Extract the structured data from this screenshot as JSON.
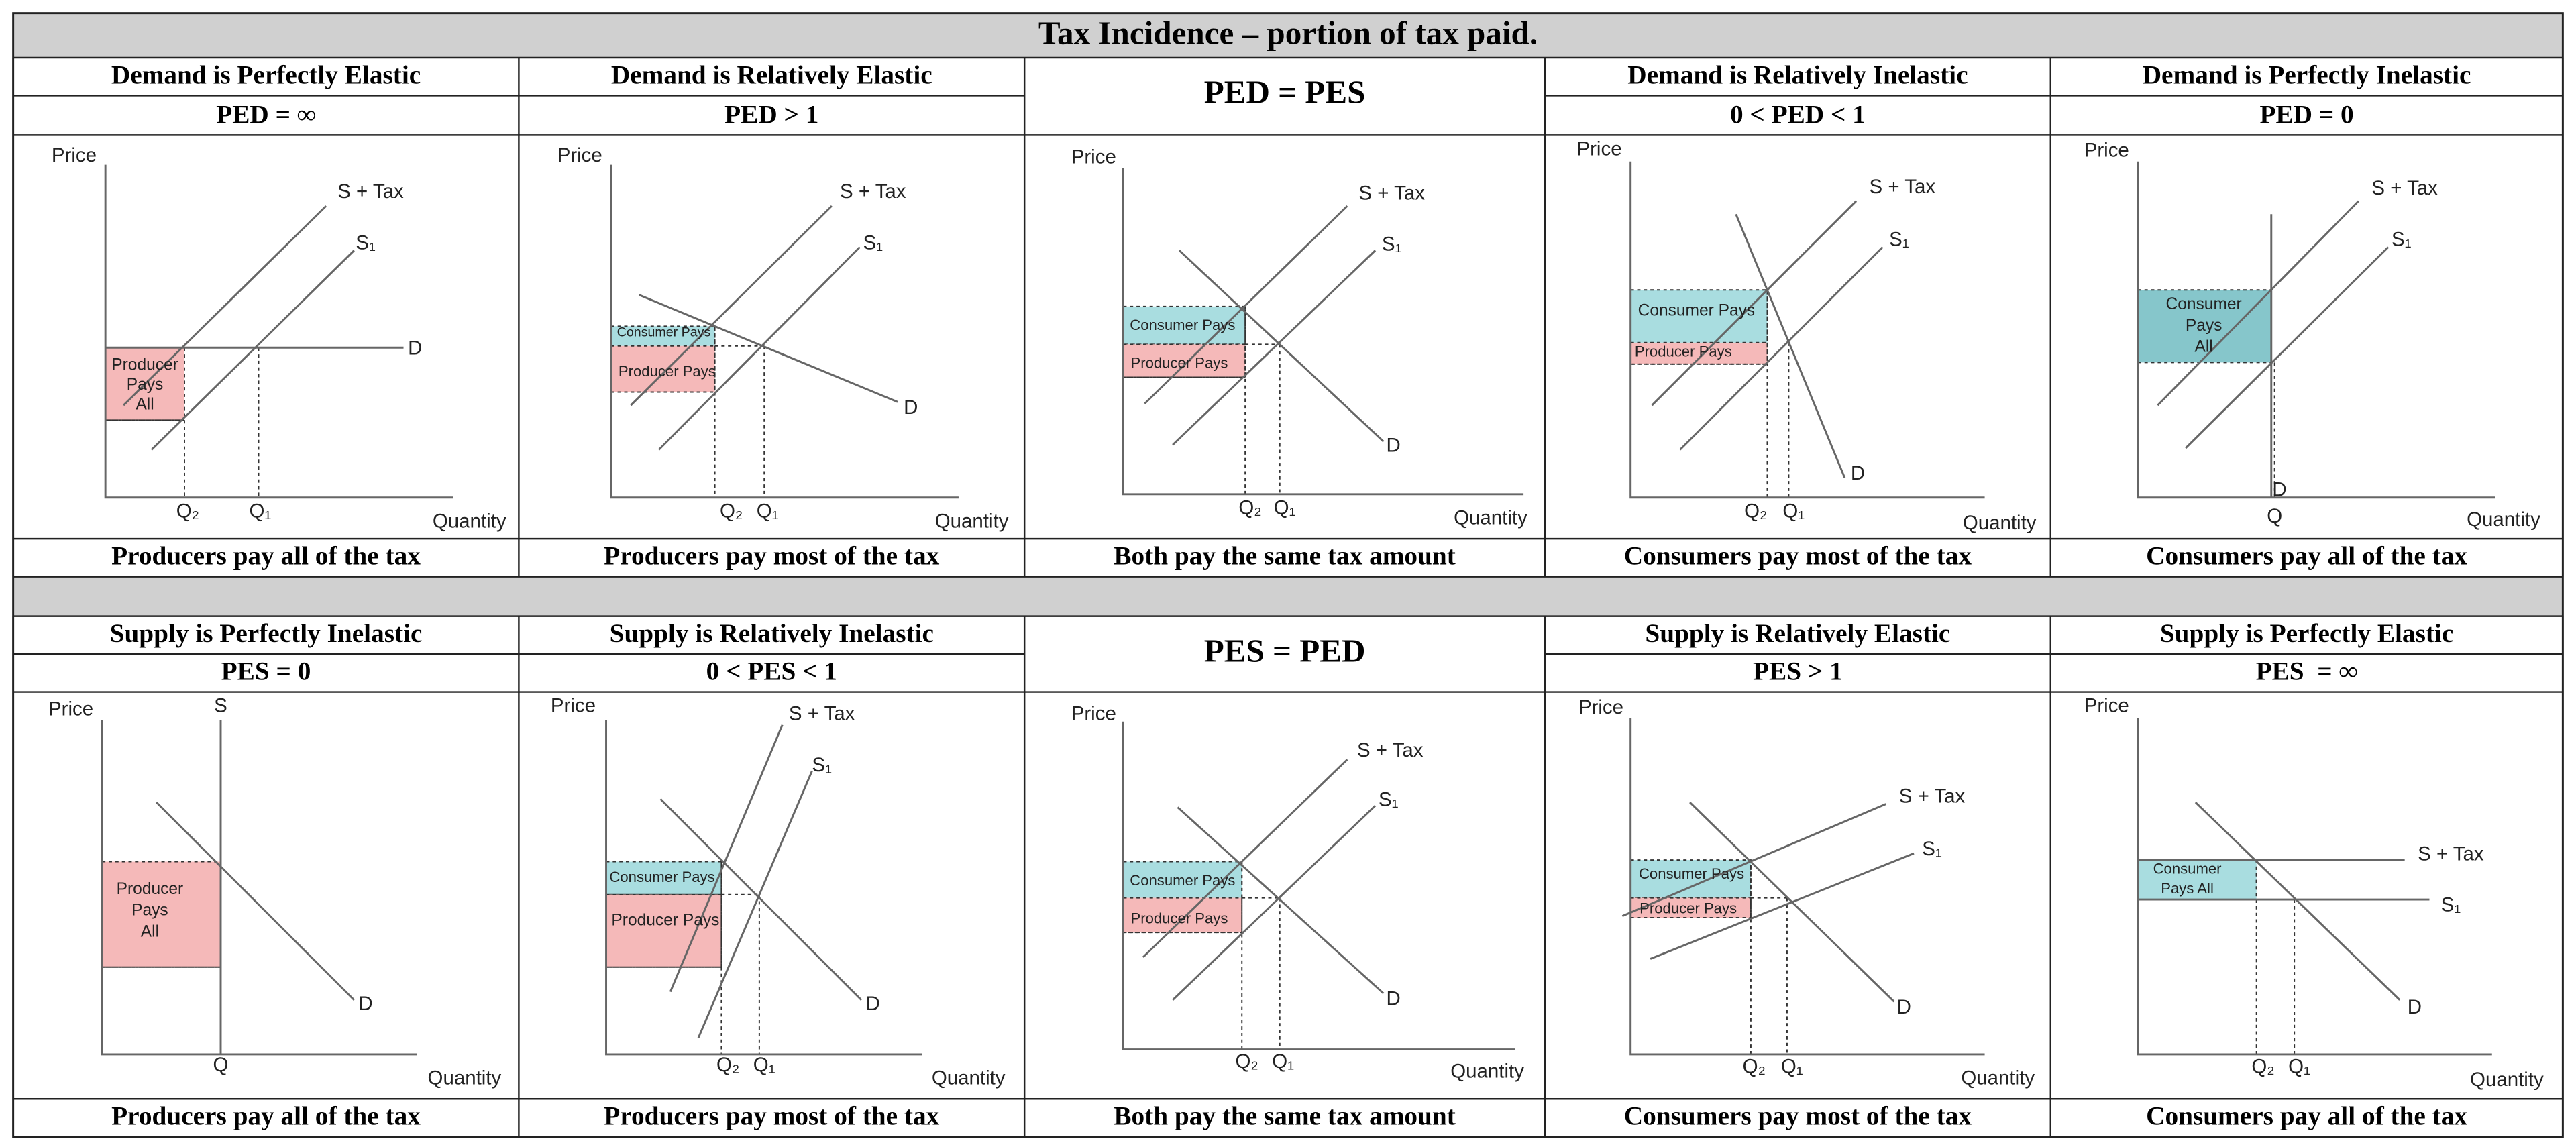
{
  "title": "Tax Incidence – portion of tax paid.",
  "panels": [
    {
      "heading": "Demand is Perfectly Elastic",
      "subheading": "PED = ∞",
      "caption": "Producers pay all of the tax",
      "labels": [
        "Price",
        "Quantity",
        "S + Tax",
        "S₁",
        "D",
        "Producer",
        "Pays",
        "All",
        "Q₂",
        "Q₁"
      ]
    },
    {
      "heading": "Demand is Relatively Elastic",
      "subheading": "PED > 1",
      "caption": "Producers pay most of the tax",
      "labels": [
        "Price",
        "Quantity",
        "S + Tax",
        "S₁",
        "D",
        "Consumer Pays",
        "Producer Pays",
        "Q₂",
        "Q₁"
      ]
    },
    {
      "heading": "PED = PES",
      "caption": "Both pay the same tax amount",
      "labels": [
        "Price",
        "Quantity",
        "S + Tax",
        "S₁",
        "D",
        "Consumer Pays",
        "Producer Pays",
        "Q₂",
        "Q₁"
      ]
    },
    {
      "heading": "Demand is Relatively Inelastic",
      "subheading": "0 < PED < 1",
      "caption": "Consumers pay most of the tax",
      "labels": [
        "Price",
        "Quantity",
        "S + Tax",
        "S₁",
        "D",
        "Consumer Pays",
        "Producer Pays",
        "Q₂",
        "Q₁"
      ]
    },
    {
      "heading": "Demand is Perfectly Inelastic",
      "subheading": "PED = 0",
      "caption": "Consumers pay all of the tax",
      "labels": [
        "Price",
        "Quantity",
        "S + Tax",
        "S₁",
        "D",
        "Consumer",
        "Pays",
        "All",
        "Q"
      ]
    },
    {
      "heading": "Supply is Perfectly Inelastic",
      "subheading": "PES = 0",
      "caption": "Producers pay all of the tax",
      "labels": [
        "Price",
        "Quantity",
        "S",
        "D",
        "Producer",
        "Pays",
        "All",
        "Q"
      ]
    },
    {
      "heading": "Supply is Relatively Inelastic",
      "subheading": "0 < PES < 1",
      "caption": "Producers pay most of the tax",
      "labels": [
        "Price",
        "Quantity",
        "S + Tax",
        "S₁",
        "D",
        "Consumer Pays",
        "Producer Pays",
        "Q₂",
        "Q₁"
      ]
    },
    {
      "heading": "PES = PED",
      "caption": "Both pay the same tax amount",
      "labels": [
        "Price",
        "Quantity",
        "S + Tax",
        "S₁",
        "D",
        "Consumer Pays",
        "Producer Pays",
        "Q₂",
        "Q₁"
      ]
    },
    {
      "heading": "Supply is Relatively Elastic",
      "subheading": "PES > 1",
      "caption": "Consumers pay most of the tax",
      "labels": [
        "Price",
        "Quantity",
        "S + Tax",
        "S₁",
        "D",
        "Consumer Pays",
        "Producer Pays",
        "Q₂",
        "Q₁"
      ]
    },
    {
      "heading": "Supply is Perfectly Elastic",
      "subheading": "PES  = ∞",
      "caption": "Consumers pay all of the tax",
      "labels": [
        "Price",
        "Quantity",
        "S + Tax",
        "S₁",
        "D",
        "Consumer",
        "Pays All",
        "Q₂",
        "Q₁"
      ]
    }
  ]
}
